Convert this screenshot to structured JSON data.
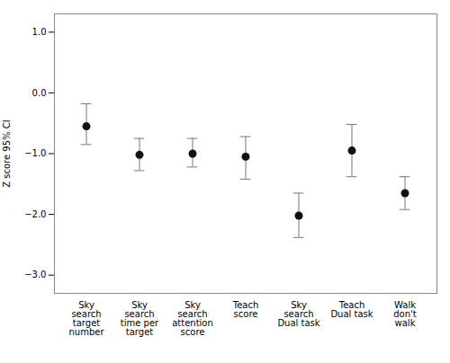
{
  "chart_data": {
    "type": "errorbar",
    "categories": [
      "Sky\nsearch\ntarget\nnumber",
      "Sky\nsearch\ntime per\ntarget",
      "Sky\nsearch\nattention\nscore",
      "Teach\nscore",
      "Sky\nsearch\nDual task",
      "Teach\nDual task",
      "Walk\ndon't\nwalk"
    ],
    "values": [
      -0.55,
      -1.02,
      -1.0,
      -1.05,
      -2.02,
      -0.95,
      -1.65
    ],
    "ci_lower": [
      -0.85,
      -1.28,
      -1.22,
      -1.42,
      -2.38,
      -1.38,
      -1.92
    ],
    "ci_upper": [
      -0.18,
      -0.75,
      -0.75,
      -0.72,
      -1.65,
      -0.52,
      -1.38
    ],
    "ylim": [
      -3.3,
      1.3
    ],
    "yticks": [
      -3,
      -2,
      -1,
      0,
      1
    ],
    "ylabel": "Z score 95% CI",
    "color": "#111111",
    "grid": false
  }
}
